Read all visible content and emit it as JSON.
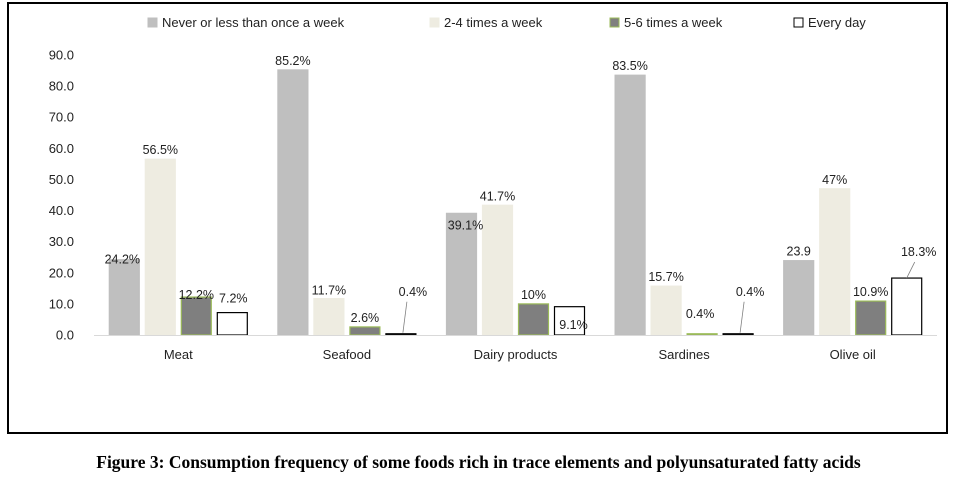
{
  "figure_caption": "Figure 3: Consumption frequency of some foods rich in trace elements and polyunsaturated fatty acids",
  "chart_data": {
    "type": "bar",
    "categories": [
      "Meat",
      "Seafood",
      "Dairy products",
      "Sardines",
      "Olive oil"
    ],
    "series": [
      {
        "name": "Never or less than once a week",
        "color": "#bfbfbf",
        "stroke": "#bfbfbf",
        "values": [
          24.2,
          85.2,
          39.1,
          83.5,
          23.9
        ],
        "labels": [
          "24.2%",
          "85.2%",
          "39.1%",
          "83.5%",
          "23.9"
        ]
      },
      {
        "name": "2-4 times a week",
        "color": "#eeece1",
        "stroke": "#eeece1",
        "values": [
          56.5,
          11.7,
          41.7,
          15.7,
          47
        ],
        "labels": [
          "56.5%",
          "11.7%",
          "41.7%",
          "15.7%",
          "47%"
        ]
      },
      {
        "name": "5-6 times a week",
        "color": "#7f7f7f",
        "stroke": "#9bbb59",
        "values": [
          12.2,
          2.6,
          10,
          0.4,
          10.9
        ],
        "labels": [
          "12.2%",
          "2.6%",
          "10%",
          "0.4%",
          "10.9%"
        ]
      },
      {
        "name": "Every day",
        "color": "#ffffff",
        "stroke": "#000000",
        "values": [
          7.2,
          0.4,
          9.1,
          0.4,
          18.3
        ],
        "labels": [
          "7.2%",
          "0.4%",
          "9.1%",
          "0.4%",
          "18.3%"
        ]
      }
    ],
    "yticks": [
      "0.0",
      "10.0",
      "20.0",
      "30.0",
      "40.0",
      "50.0",
      "60.0",
      "70.0",
      "80.0",
      "90.0"
    ],
    "ylim": [
      0,
      90
    ],
    "grid": false,
    "legend_position": "top"
  }
}
